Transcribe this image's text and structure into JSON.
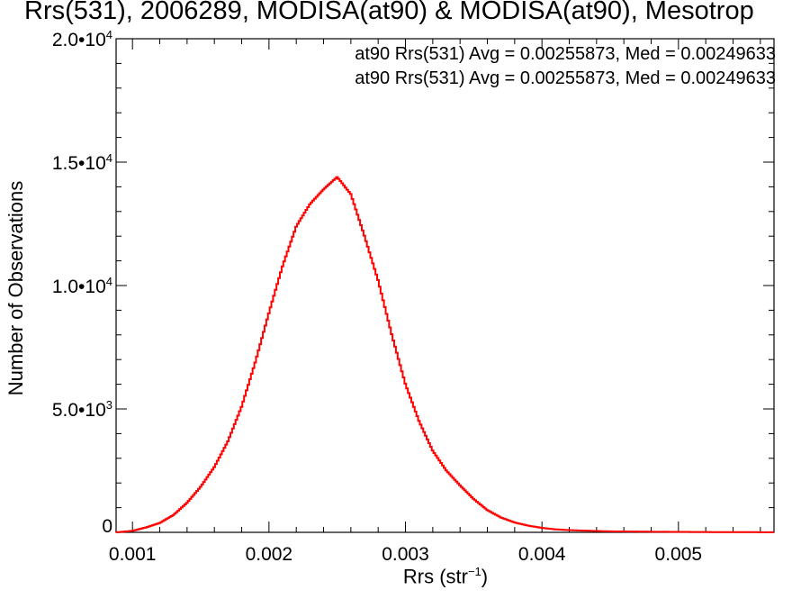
{
  "chart_data": {
    "type": "histogram",
    "title": "Rrs(531), 2006289, MODISA(at90) & MODISA(at90), Mesotrop",
    "xlabel": "Rrs (str",
    "xlabel_sup": "−1",
    "xlabel_close": ")",
    "ylabel": "Number of Observations",
    "xlim": [
      0.00088,
      0.0057
    ],
    "ylim": [
      0,
      20000
    ],
    "x_ticks": [
      {
        "value": 0.001,
        "label": "0.001"
      },
      {
        "value": 0.002,
        "label": "0.002"
      },
      {
        "value": 0.003,
        "label": "0.003"
      },
      {
        "value": 0.004,
        "label": "0.004"
      },
      {
        "value": 0.005,
        "label": "0.005"
      }
    ],
    "y_ticks": [
      {
        "value": 0,
        "mantissa": "0",
        "exp": ""
      },
      {
        "value": 5000,
        "mantissa": "5.0•10",
        "exp": "3"
      },
      {
        "value": 10000,
        "mantissa": "1.0•10",
        "exp": "4"
      },
      {
        "value": 15000,
        "mantissa": "1.5•10",
        "exp": "4"
      },
      {
        "value": 20000,
        "mantissa": "2.0•10",
        "exp": "4"
      }
    ],
    "annotations": [
      {
        "text": "at90 Rrs(531) Avg = 0.00255873, Med = 0.00249633",
        "color": "#000000"
      },
      {
        "text": "at90 Rrs(531) Avg = 0.00255873, Med = 0.00249633",
        "color": "#ff0000"
      }
    ],
    "series": [
      {
        "color": "#ff0000",
        "x": [
          0.00088,
          0.001,
          0.0011,
          0.0012,
          0.0013,
          0.0014,
          0.0015,
          0.0016,
          0.0017,
          0.0018,
          0.0019,
          0.002,
          0.0021,
          0.0022,
          0.0023,
          0.0024,
          0.0025,
          0.0026,
          0.0027,
          0.0028,
          0.0029,
          0.003,
          0.0031,
          0.0032,
          0.0033,
          0.0034,
          0.0035,
          0.0036,
          0.0037,
          0.0038,
          0.0039,
          0.004,
          0.0041,
          0.0042,
          0.0043,
          0.0045,
          0.0048,
          0.0052,
          0.0057
        ],
        "values": [
          0,
          60,
          200,
          380,
          700,
          1200,
          1850,
          2650,
          3700,
          5100,
          6900,
          8900,
          10800,
          12400,
          13300,
          13900,
          14400,
          13700,
          12000,
          10200,
          8000,
          6000,
          4500,
          3300,
          2500,
          1900,
          1350,
          900,
          600,
          400,
          270,
          180,
          120,
          90,
          70,
          40,
          25,
          12,
          5
        ]
      }
    ]
  }
}
